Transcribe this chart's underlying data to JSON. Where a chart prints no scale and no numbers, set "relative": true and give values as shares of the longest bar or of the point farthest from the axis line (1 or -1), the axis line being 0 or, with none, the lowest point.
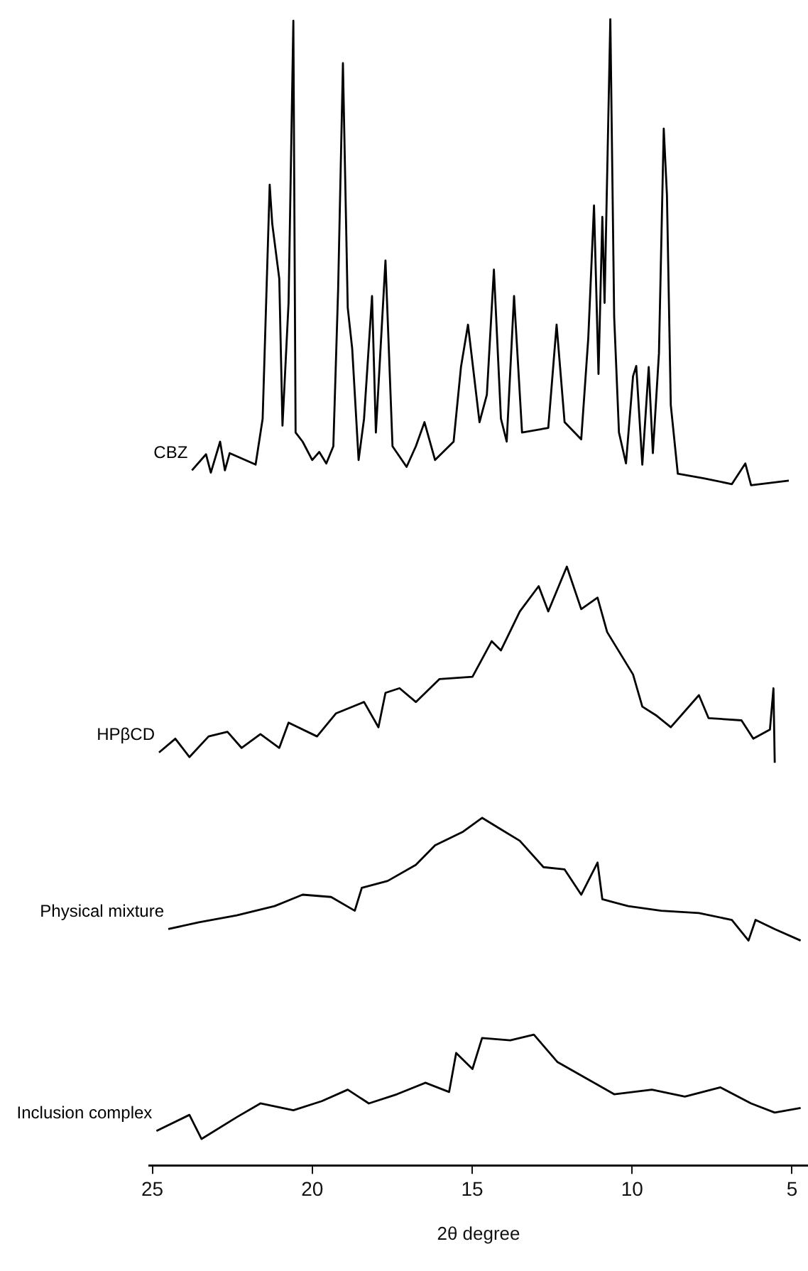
{
  "chart_data": {
    "type": "line",
    "xlabel": "2θ degree",
    "relative": true,
    "xlim": [
      25.1,
      4.5
    ],
    "xticks": [
      25,
      20,
      15,
      10,
      5
    ],
    "grid": false,
    "legend": false,
    "marker": "none",
    "line_style": "solid",
    "series": [
      {
        "name": "CBZ",
        "color": "#000000",
        "x": [
          23.76,
          23.32,
          23.17,
          22.88,
          22.73,
          22.58,
          21.77,
          21.55,
          21.33,
          21.25,
          21.03,
          20.93,
          20.74,
          20.59,
          20.52,
          20.3,
          20.0,
          19.78,
          19.56,
          19.34,
          19.19,
          19.04,
          18.89,
          18.75,
          18.55,
          18.38,
          18.13,
          18.01,
          17.71,
          17.49,
          17.05,
          16.76,
          16.49,
          16.16,
          15.58,
          15.35,
          15.13,
          14.77,
          14.54,
          14.32,
          14.1,
          13.92,
          13.69,
          13.44,
          12.62,
          12.36,
          12.11,
          11.59,
          11.37,
          11.19,
          11.05,
          10.93,
          10.86,
          10.68,
          10.56,
          10.41,
          10.19,
          9.97,
          9.87,
          9.68,
          9.48,
          9.35,
          9.16,
          9.01,
          8.91,
          8.79,
          8.57,
          7.76,
          6.88,
          6.46,
          6.28,
          5.1
        ],
        "values": [
          0.606,
          0.62,
          0.604,
          0.631,
          0.606,
          0.621,
          0.611,
          0.651,
          0.855,
          0.821,
          0.773,
          0.645,
          0.752,
          0.998,
          0.639,
          0.631,
          0.615,
          0.622,
          0.612,
          0.627,
          0.764,
          0.961,
          0.748,
          0.712,
          0.615,
          0.651,
          0.758,
          0.639,
          0.789,
          0.627,
          0.609,
          0.627,
          0.648,
          0.615,
          0.631,
          0.696,
          0.733,
          0.648,
          0.672,
          0.781,
          0.651,
          0.631,
          0.758,
          0.639,
          0.643,
          0.733,
          0.648,
          0.633,
          0.721,
          0.837,
          0.69,
          0.827,
          0.752,
          1.0,
          0.74,
          0.639,
          0.612,
          0.688,
          0.697,
          0.611,
          0.696,
          0.621,
          0.708,
          0.904,
          0.846,
          0.663,
          0.603,
          0.599,
          0.594,
          0.612,
          0.593,
          0.597
        ]
      },
      {
        "name": "HPβCD",
        "color": "#000000",
        "x": [
          24.79,
          24.28,
          23.84,
          23.24,
          22.65,
          22.21,
          21.62,
          21.03,
          20.74,
          19.85,
          19.26,
          18.38,
          17.93,
          17.71,
          17.27,
          16.76,
          16.02,
          14.99,
          14.39,
          14.1,
          13.51,
          12.92,
          12.62,
          12.04,
          11.59,
          11.08,
          10.78,
          9.97,
          9.68,
          9.23,
          8.79,
          7.91,
          7.61,
          6.58,
          6.21,
          5.69,
          5.58,
          5.54
        ],
        "values": [
          0.36,
          0.372,
          0.356,
          0.374,
          0.378,
          0.364,
          0.376,
          0.364,
          0.386,
          0.374,
          0.394,
          0.404,
          0.382,
          0.412,
          0.416,
          0.404,
          0.424,
          0.426,
          0.457,
          0.449,
          0.483,
          0.505,
          0.483,
          0.522,
          0.485,
          0.495,
          0.465,
          0.428,
          0.4,
          0.392,
          0.382,
          0.41,
          0.39,
          0.388,
          0.372,
          0.38,
          0.416,
          0.351
        ]
      },
      {
        "name": "Physical mixture",
        "color": "#000000",
        "x": [
          24.5,
          23.54,
          22.36,
          21.18,
          20.3,
          19.41,
          18.67,
          18.45,
          17.64,
          16.76,
          16.16,
          15.28,
          14.69,
          14.1,
          13.51,
          12.77,
          12.11,
          11.59,
          11.08,
          10.93,
          10.12,
          9.09,
          7.91,
          6.88,
          6.36,
          6.14,
          5.54,
          4.73
        ],
        "values": [
          0.206,
          0.212,
          0.218,
          0.226,
          0.236,
          0.234,
          0.222,
          0.242,
          0.248,
          0.262,
          0.279,
          0.291,
          0.303,
          0.293,
          0.283,
          0.26,
          0.258,
          0.236,
          0.264,
          0.232,
          0.226,
          0.222,
          0.22,
          0.214,
          0.196,
          0.214,
          0.206,
          0.196
        ]
      },
      {
        "name": "Inclusion complex",
        "color": "#000000",
        "x": [
          24.87,
          23.84,
          23.46,
          22.36,
          21.62,
          20.59,
          19.7,
          18.89,
          18.23,
          17.35,
          16.46,
          15.72,
          15.5,
          14.99,
          14.69,
          13.81,
          13.07,
          12.33,
          11.44,
          10.56,
          9.38,
          8.35,
          7.24,
          6.28,
          5.54,
          4.73
        ],
        "values": [
          0.03,
          0.044,
          0.023,
          0.042,
          0.054,
          0.048,
          0.056,
          0.066,
          0.054,
          0.062,
          0.072,
          0.064,
          0.098,
          0.084,
          0.111,
          0.109,
          0.114,
          0.09,
          0.076,
          0.062,
          0.066,
          0.06,
          0.068,
          0.054,
          0.046,
          0.05
        ]
      }
    ]
  }
}
